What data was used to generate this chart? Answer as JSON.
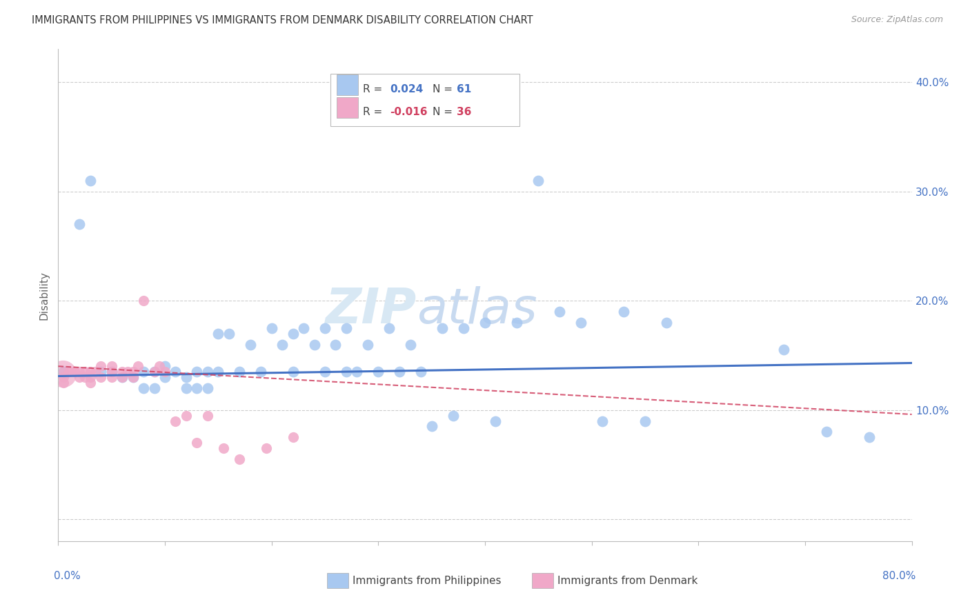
{
  "title": "IMMIGRANTS FROM PHILIPPINES VS IMMIGRANTS FROM DENMARK DISABILITY CORRELATION CHART",
  "source": "Source: ZipAtlas.com",
  "ylabel": "Disability",
  "xlim": [
    0.0,
    0.8
  ],
  "ylim": [
    -0.02,
    0.43
  ],
  "yticks": [
    0.0,
    0.1,
    0.2,
    0.3,
    0.4
  ],
  "ytick_labels_right": [
    "",
    "10.0%",
    "20.0%",
    "30.0%",
    "40.0%"
  ],
  "blue_color": "#a8c8f0",
  "pink_color": "#f0a8c8",
  "blue_line_color": "#4472c4",
  "pink_line_color": "#d04060",
  "watermark_zip": "ZIP",
  "watermark_atlas": "atlas",
  "phil_x": [
    0.005,
    0.02,
    0.03,
    0.04,
    0.05,
    0.06,
    0.07,
    0.08,
    0.08,
    0.09,
    0.09,
    0.1,
    0.1,
    0.11,
    0.12,
    0.12,
    0.13,
    0.13,
    0.14,
    0.14,
    0.15,
    0.15,
    0.16,
    0.17,
    0.18,
    0.19,
    0.2,
    0.21,
    0.22,
    0.22,
    0.23,
    0.24,
    0.25,
    0.25,
    0.26,
    0.27,
    0.27,
    0.28,
    0.29,
    0.3,
    0.31,
    0.32,
    0.33,
    0.34,
    0.35,
    0.36,
    0.37,
    0.38,
    0.4,
    0.41,
    0.43,
    0.45,
    0.47,
    0.49,
    0.51,
    0.53,
    0.55,
    0.57,
    0.68,
    0.72,
    0.76
  ],
  "phil_y": [
    0.135,
    0.27,
    0.31,
    0.135,
    0.135,
    0.13,
    0.13,
    0.135,
    0.12,
    0.135,
    0.12,
    0.14,
    0.13,
    0.135,
    0.13,
    0.12,
    0.135,
    0.12,
    0.135,
    0.12,
    0.17,
    0.135,
    0.17,
    0.135,
    0.16,
    0.135,
    0.175,
    0.16,
    0.17,
    0.135,
    0.175,
    0.16,
    0.135,
    0.175,
    0.16,
    0.135,
    0.175,
    0.135,
    0.16,
    0.135,
    0.175,
    0.135,
    0.16,
    0.135,
    0.085,
    0.175,
    0.095,
    0.175,
    0.18,
    0.09,
    0.18,
    0.31,
    0.19,
    0.18,
    0.09,
    0.19,
    0.09,
    0.18,
    0.155,
    0.08,
    0.075
  ],
  "denmark_x": [
    0.005,
    0.005,
    0.005,
    0.01,
    0.015,
    0.02,
    0.02,
    0.025,
    0.025,
    0.03,
    0.03,
    0.03,
    0.035,
    0.04,
    0.04,
    0.05,
    0.05,
    0.05,
    0.06,
    0.06,
    0.065,
    0.07,
    0.07,
    0.075,
    0.08,
    0.09,
    0.095,
    0.1,
    0.11,
    0.12,
    0.13,
    0.14,
    0.155,
    0.17,
    0.195,
    0.22
  ],
  "denmark_y": [
    0.135,
    0.13,
    0.125,
    0.135,
    0.135,
    0.135,
    0.13,
    0.135,
    0.13,
    0.135,
    0.13,
    0.125,
    0.135,
    0.14,
    0.13,
    0.135,
    0.14,
    0.13,
    0.135,
    0.13,
    0.135,
    0.135,
    0.13,
    0.14,
    0.2,
    0.135,
    0.14,
    0.135,
    0.09,
    0.095,
    0.07,
    0.095,
    0.065,
    0.055,
    0.065,
    0.075
  ],
  "phil_line_x": [
    0.0,
    0.8
  ],
  "phil_line_y": [
    0.131,
    0.143
  ],
  "denmark_line_x": [
    0.0,
    0.8
  ],
  "denmark_line_y": [
    0.14,
    0.096
  ]
}
